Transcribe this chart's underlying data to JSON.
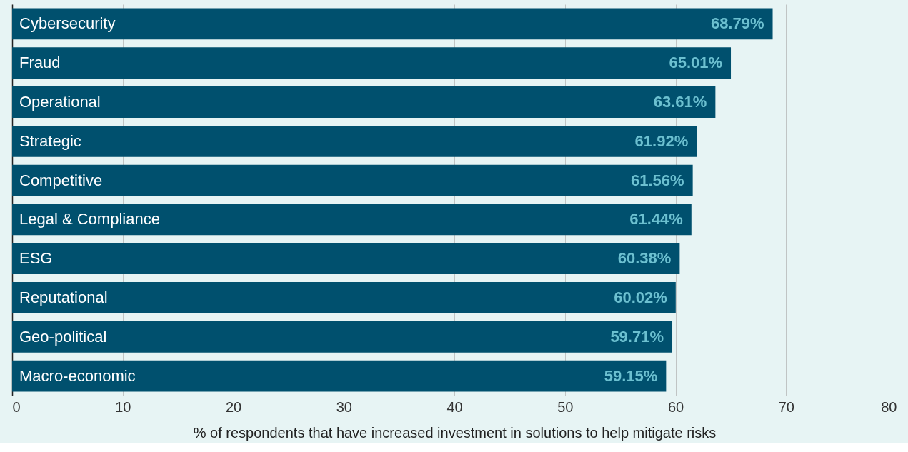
{
  "chart_data": {
    "type": "bar",
    "orientation": "horizontal",
    "xlabel": "% of respondents that have increased investment in solutions to help mitigate risks",
    "categories": [
      "Cybersecurity",
      "Fraud",
      "Operational",
      "Strategic",
      "Competitive",
      "Legal & Compliance",
      "ESG",
      "Reputational",
      "Geo-political",
      "Macro-economic"
    ],
    "values": [
      68.79,
      65.01,
      63.61,
      61.92,
      61.56,
      61.44,
      60.38,
      60.02,
      59.71,
      59.15
    ],
    "value_labels": [
      "68.79%",
      "65.01%",
      "63.61%",
      "61.92%",
      "61.56%",
      "61.44%",
      "60.38%",
      "60.02%",
      "59.71%",
      "59.15%"
    ],
    "color": "#00506e",
    "xlim": [
      0,
      80
    ],
    "xticks": [
      0,
      10,
      20,
      30,
      40,
      50,
      60,
      70,
      80
    ],
    "grid": "x"
  }
}
